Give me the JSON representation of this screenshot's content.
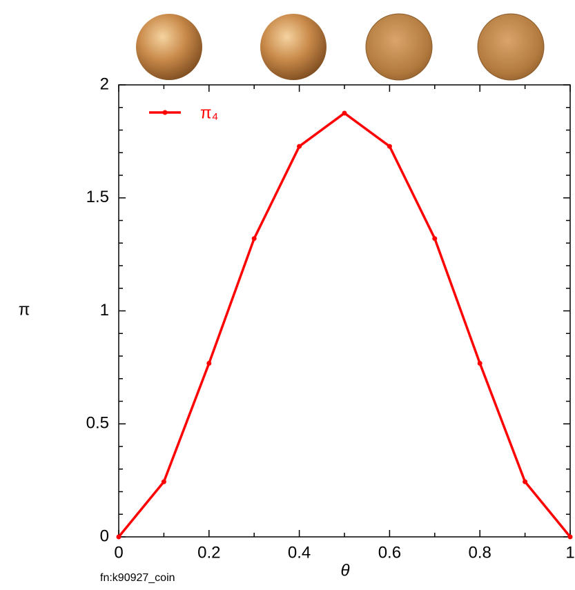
{
  "chart_data": {
    "type": "line",
    "x": [
      0,
      0.1,
      0.2,
      0.3,
      0.4,
      0.5,
      0.6,
      0.7,
      0.8,
      0.9,
      1
    ],
    "series": [
      {
        "name": "π₄",
        "color": "#ff0000",
        "values": [
          0,
          0.244,
          0.768,
          1.32,
          1.728,
          1.875,
          1.728,
          1.32,
          0.768,
          0.244,
          0
        ]
      }
    ],
    "xlim": [
      0,
      1
    ],
    "xticks": [
      0,
      0.2,
      0.4,
      0.6,
      0.8,
      1
    ],
    "ylim": [
      0,
      2
    ],
    "yticks": [
      0,
      0.5,
      1,
      1.5,
      2
    ],
    "xlabel": "θ",
    "ylabel": "π",
    "footnote": "fn:k90927_coin",
    "legend": "upper left"
  }
}
